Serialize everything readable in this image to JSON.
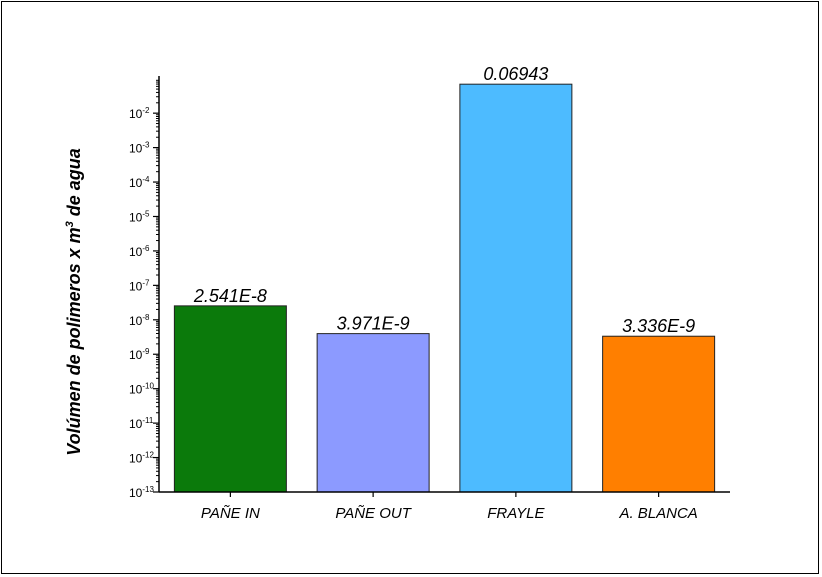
{
  "chart_data": {
    "type": "bar",
    "ylabel_main": "Volúmen de polimeros x m",
    "ylabel_sup": "3",
    "ylabel_tail": " de agua",
    "yscale": "log",
    "ylim": [
      1e-13,
      0.12
    ],
    "ytick_exponents": [
      -13,
      -12,
      -11,
      -10,
      -9,
      -8,
      -7,
      -6,
      -5,
      -4,
      -3,
      -2
    ],
    "ytick_base": "10",
    "categories": [
      "PAÑE IN",
      "PAÑE OUT",
      "FRAYLE",
      "A. BLANCA"
    ],
    "values": [
      2.541e-08,
      3.971e-09,
      0.06943,
      3.336e-09
    ],
    "value_labels": [
      "2.541E-8",
      "3.971E-9",
      "0.06943",
      "3.336E-9"
    ],
    "colors": [
      "#0b7a0b",
      "#8c9aff",
      "#4dbbff",
      "#ff7f00"
    ],
    "grid": false,
    "legend": false
  }
}
